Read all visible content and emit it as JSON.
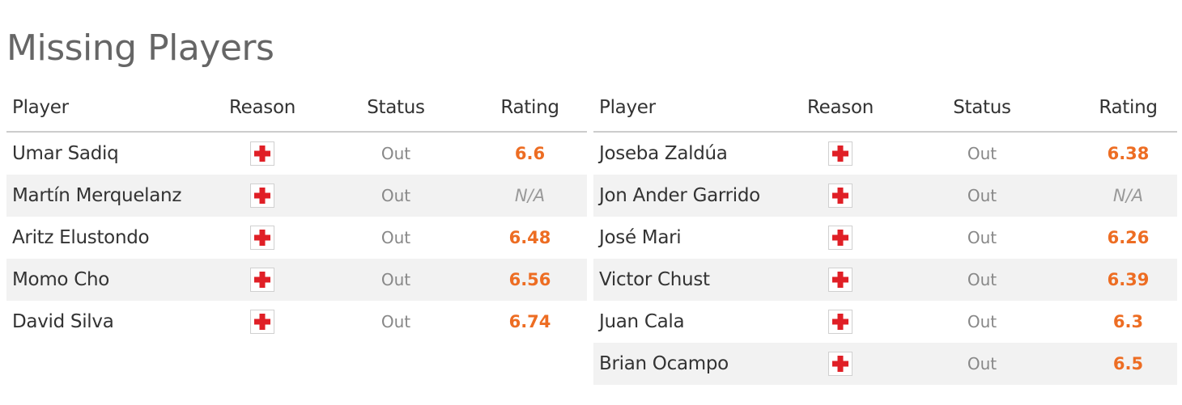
{
  "title": "Missing Players",
  "headers": {
    "player": "Player",
    "reason": "Reason",
    "status": "Status",
    "rating": "Rating"
  },
  "colors": {
    "rating": "#ed6d23",
    "injury_cross": "#e01f26",
    "alt_row": "#f2f2f2"
  },
  "left_team": [
    {
      "player": "Umar Sadiq",
      "reason_icon": "injury-cross-icon",
      "status": "Out",
      "rating": "6.6"
    },
    {
      "player": "Martín Merquelanz",
      "reason_icon": "injury-cross-icon",
      "status": "Out",
      "rating": "N/A"
    },
    {
      "player": "Aritz Elustondo",
      "reason_icon": "injury-cross-icon",
      "status": "Out",
      "rating": "6.48"
    },
    {
      "player": "Momo Cho",
      "reason_icon": "injury-cross-icon",
      "status": "Out",
      "rating": "6.56"
    },
    {
      "player": "David Silva",
      "reason_icon": "injury-cross-icon",
      "status": "Out",
      "rating": "6.74"
    }
  ],
  "right_team": [
    {
      "player": "Joseba Zaldúa",
      "reason_icon": "injury-cross-icon",
      "status": "Out",
      "rating": "6.38"
    },
    {
      "player": "Jon Ander Garrido",
      "reason_icon": "injury-cross-icon",
      "status": "Out",
      "rating": "N/A"
    },
    {
      "player": "José Mari",
      "reason_icon": "injury-cross-icon",
      "status": "Out",
      "rating": "6.26"
    },
    {
      "player": "Victor Chust",
      "reason_icon": "injury-cross-icon",
      "status": "Out",
      "rating": "6.39"
    },
    {
      "player": "Juan Cala",
      "reason_icon": "injury-cross-icon",
      "status": "Out",
      "rating": "6.3"
    },
    {
      "player": "Brian Ocampo",
      "reason_icon": "injury-cross-icon",
      "status": "Out",
      "rating": "6.5"
    }
  ]
}
